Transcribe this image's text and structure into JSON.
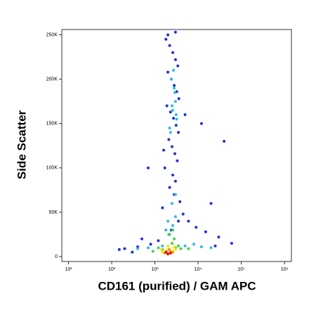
{
  "chart_data": {
    "type": "scatter",
    "x_label": "CD161 (purified) / GAM APC",
    "y_label": "Side Scatter",
    "x_log": true,
    "xlim": [
      7,
      1450000
    ],
    "ylim": [
      -5500,
      256000
    ],
    "xticks": [
      {
        "value": 10,
        "label": "10¹"
      },
      {
        "value": 100,
        "label": "10²"
      },
      {
        "value": 1000,
        "label": "10³"
      },
      {
        "value": 10000,
        "label": "10⁴"
      },
      {
        "value": 100000,
        "label": "10⁵"
      },
      {
        "value": 1000000,
        "label": "10⁶"
      }
    ],
    "yticks": [
      {
        "value": 0,
        "label": "0"
      },
      {
        "value": 50000,
        "label": "50K"
      },
      {
        "value": 100000,
        "label": "100K"
      },
      {
        "value": 150000,
        "label": "150K"
      },
      {
        "value": 200000,
        "label": "200K"
      },
      {
        "value": 250000,
        "label": "250K"
      }
    ],
    "series": [
      {
        "color": "#1f2fd6",
        "x": [
          1800,
          2200,
          2600,
          3000,
          3400,
          2000,
          2400,
          2800,
          3200,
          3600,
          1900,
          2300,
          2700,
          3100,
          3500,
          2100,
          2500,
          2900,
          3300,
          1700,
          2600,
          3000,
          2200,
          2800,
          3800,
          1500,
          4500,
          6000,
          9000,
          15000,
          30000,
          1200,
          800,
          400,
          200,
          150,
          60000,
          25000,
          2000,
          3000,
          500,
          12000,
          40000,
          700,
          5000,
          20000,
          300,
          3500,
          2400,
          1600
        ],
        "values": [
          245000,
          238000,
          230000,
          222000,
          215000,
          208000,
          200000,
          193000,
          186000,
          178000,
          170000,
          163000,
          156000,
          148000,
          140000,
          132000,
          124000,
          116000,
          108000,
          100000,
          92000,
          85000,
          78000,
          70000,
          62000,
          55000,
          48000,
          40000,
          33000,
          28000,
          22000,
          18000,
          14000,
          11000,
          9000,
          8000,
          15000,
          12000,
          250000,
          253000,
          20000,
          150000,
          130000,
          100000,
          160000,
          60000,
          5000,
          40000,
          30000,
          120000
        ]
      },
      {
        "color": "#2fb8e8",
        "x": [
          2400,
          2800,
          3000,
          2600,
          3200,
          2200,
          2900,
          2500,
          2700,
          3100,
          2300,
          2000,
          2600,
          3000,
          1500,
          5000,
          8000,
          12000,
          20000,
          700,
          400,
          2500,
          3000,
          2100,
          1800
        ],
        "values": [
          200000,
          190000,
          175000,
          165000,
          155000,
          145000,
          185000,
          170000,
          210000,
          160000,
          140000,
          40000,
          35000,
          45000,
          12000,
          12000,
          14000,
          11000,
          10000,
          10000,
          9000,
          60000,
          70000,
          25000,
          30000
        ]
      },
      {
        "color": "#3fd24a",
        "x": [
          2000,
          2500,
          3000,
          1500,
          3500,
          1200,
          4000,
          6000,
          2200,
          2800,
          900,
          2600
        ],
        "values": [
          12000,
          15000,
          10000,
          8000,
          12000,
          10000,
          9000,
          9000,
          25000,
          20000,
          6000,
          30000
        ]
      },
      {
        "color": "#f2e81c",
        "x": [
          1800,
          2200,
          2600,
          1500,
          3000,
          2000,
          1400,
          2800
        ],
        "values": [
          7000,
          9000,
          6000,
          5000,
          8000,
          12000,
          8000,
          11000
        ]
      },
      {
        "color": "#f59a12",
        "x": [
          1900,
          2300,
          1700,
          2600,
          2100
        ],
        "values": [
          5000,
          6000,
          4000,
          5000,
          8000
        ]
      },
      {
        "color": "#e3141a",
        "x": [
          2000,
          2300,
          1800
        ],
        "values": [
          3000,
          4000,
          5000
        ]
      }
    ]
  }
}
